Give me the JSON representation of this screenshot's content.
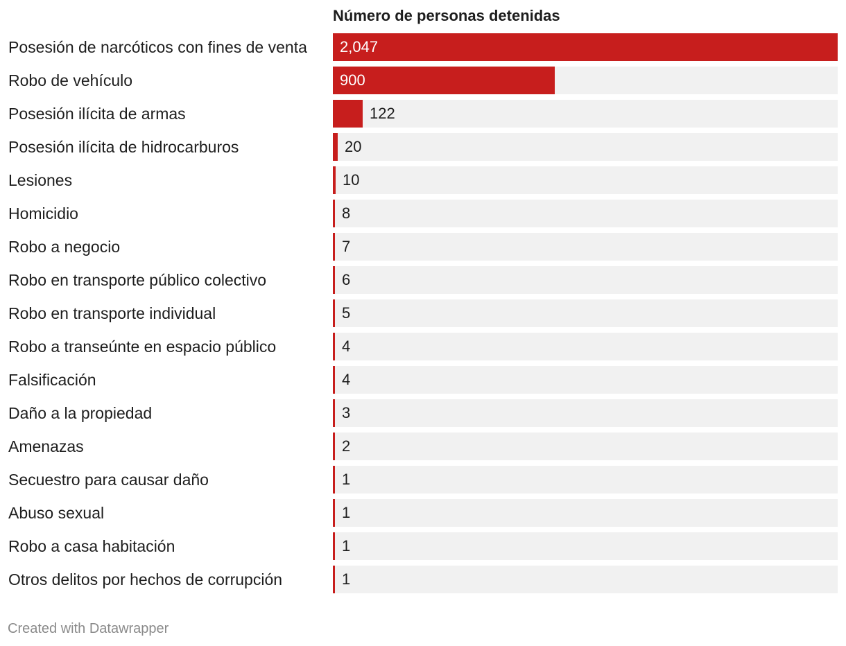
{
  "chart_data": {
    "type": "bar",
    "orientation": "horizontal",
    "title": "Número de personas detenidas",
    "categories": [
      "Posesión de narcóticos con fines de venta",
      "Robo de vehículo",
      "Posesión ilícita de armas",
      "Posesión ilícita de hidrocarburos",
      "Lesiones",
      "Homicidio",
      "Robo a negocio",
      "Robo en transporte público colectivo",
      "Robo en transporte individual",
      "Robo a transeúnte en espacio público",
      "Falsificación",
      "Daño a la propiedad",
      "Amenazas",
      "Secuestro para causar daño",
      "Abuso sexual",
      "Robo a casa habitación",
      "Otros delitos por hechos de corrupción"
    ],
    "values": [
      2047,
      900,
      122,
      20,
      10,
      8,
      7,
      6,
      5,
      4,
      4,
      3,
      2,
      1,
      1,
      1,
      1
    ],
    "value_labels": [
      "2,047",
      "900",
      "122",
      "20",
      "10",
      "8",
      "7",
      "6",
      "5",
      "4",
      "4",
      "3",
      "2",
      "1",
      "1",
      "1",
      "1"
    ],
    "xlim": [
      0,
      2047
    ],
    "bar_color": "#c71e1d",
    "track_color": "#f1f1f1"
  },
  "footer": {
    "credit": "Created with Datawrapper"
  }
}
